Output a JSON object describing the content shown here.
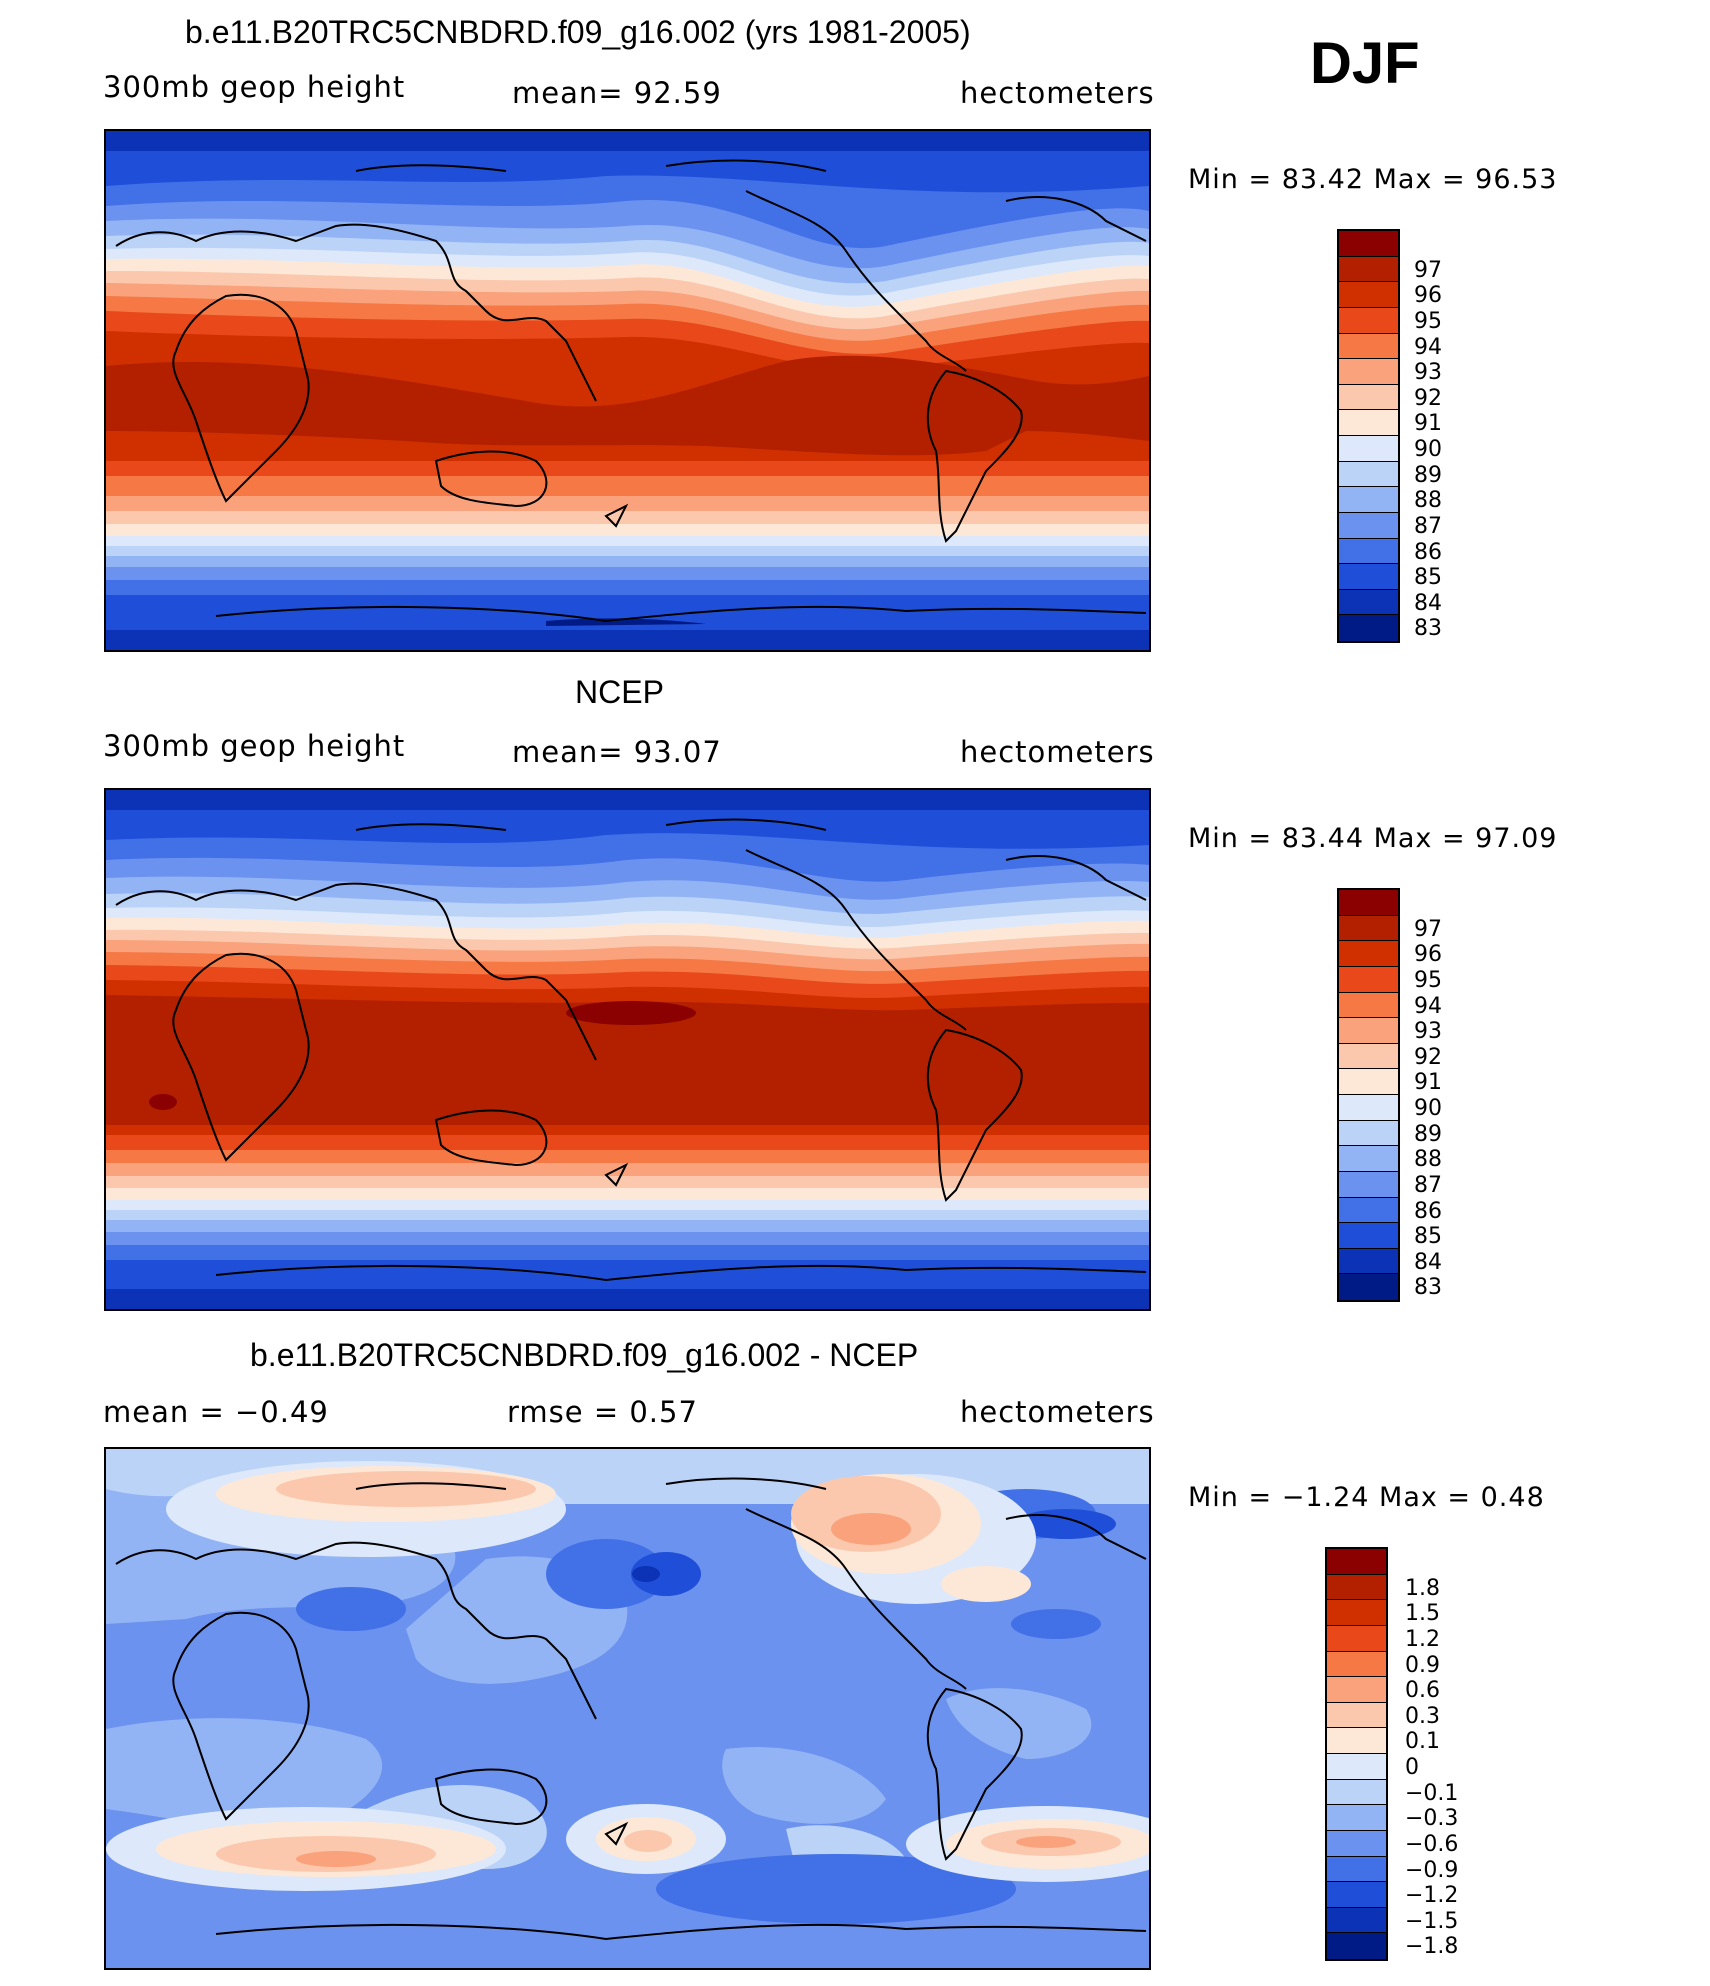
{
  "season": "DJF",
  "panels": [
    {
      "title": "b.e11.B20TRC5CNBDRD.f09_g16.002 (yrs 1981-2005)",
      "left_label": "300mb  geop  height",
      "center_label": "mean=   92.59",
      "right_label": "hectometers",
      "minmax": "Min  =    83.42  Max  =    96.53"
    },
    {
      "title": "NCEP",
      "left_label": "300mb  geop  height",
      "center_label": "mean=   93.07",
      "right_label": "hectometers",
      "minmax": "Min  =    83.44  Max  =    97.09"
    },
    {
      "title": "b.e11.B20TRC5CNBDRD.f09_g16.002 - NCEP",
      "left_label": "mean  =    −0.49",
      "center_label": "rmse  =     0.57",
      "right_label": "hectometers",
      "minmax": "Min  =   −1.24  Max  =     0.48"
    }
  ],
  "colorbar_abs": {
    "labels": [
      "97",
      "96",
      "95",
      "94",
      "93",
      "92",
      "91",
      "90",
      "89",
      "88",
      "87",
      "86",
      "85",
      "84",
      "83"
    ],
    "colors": [
      "#8b0000",
      "#b22000",
      "#d03000",
      "#e8481a",
      "#f57845",
      "#f9a27c",
      "#fcc8ad",
      "#fde8d8",
      "#dde9fa",
      "#bcd3f8",
      "#93b4f4",
      "#6b92ee",
      "#4270e6",
      "#1f4fd8",
      "#0c33b5",
      "#001b86"
    ]
  },
  "colorbar_diff": {
    "labels": [
      "1.8",
      "1.5",
      "1.2",
      "0.9",
      "0.6",
      "0.3",
      "0.1",
      "0",
      "−0.1",
      "−0.3",
      "−0.6",
      "−0.9",
      "−1.2",
      "−1.5",
      "−1.8"
    ],
    "colors": [
      "#8b0000",
      "#b22000",
      "#d03000",
      "#e8481a",
      "#f57845",
      "#f9a27c",
      "#fcc8ad",
      "#fde8d8",
      "#dde9fa",
      "#bcd3f8",
      "#93b4f4",
      "#6b92ee",
      "#4270e6",
      "#1f4fd8",
      "#0c33b5",
      "#001b86"
    ]
  }
}
